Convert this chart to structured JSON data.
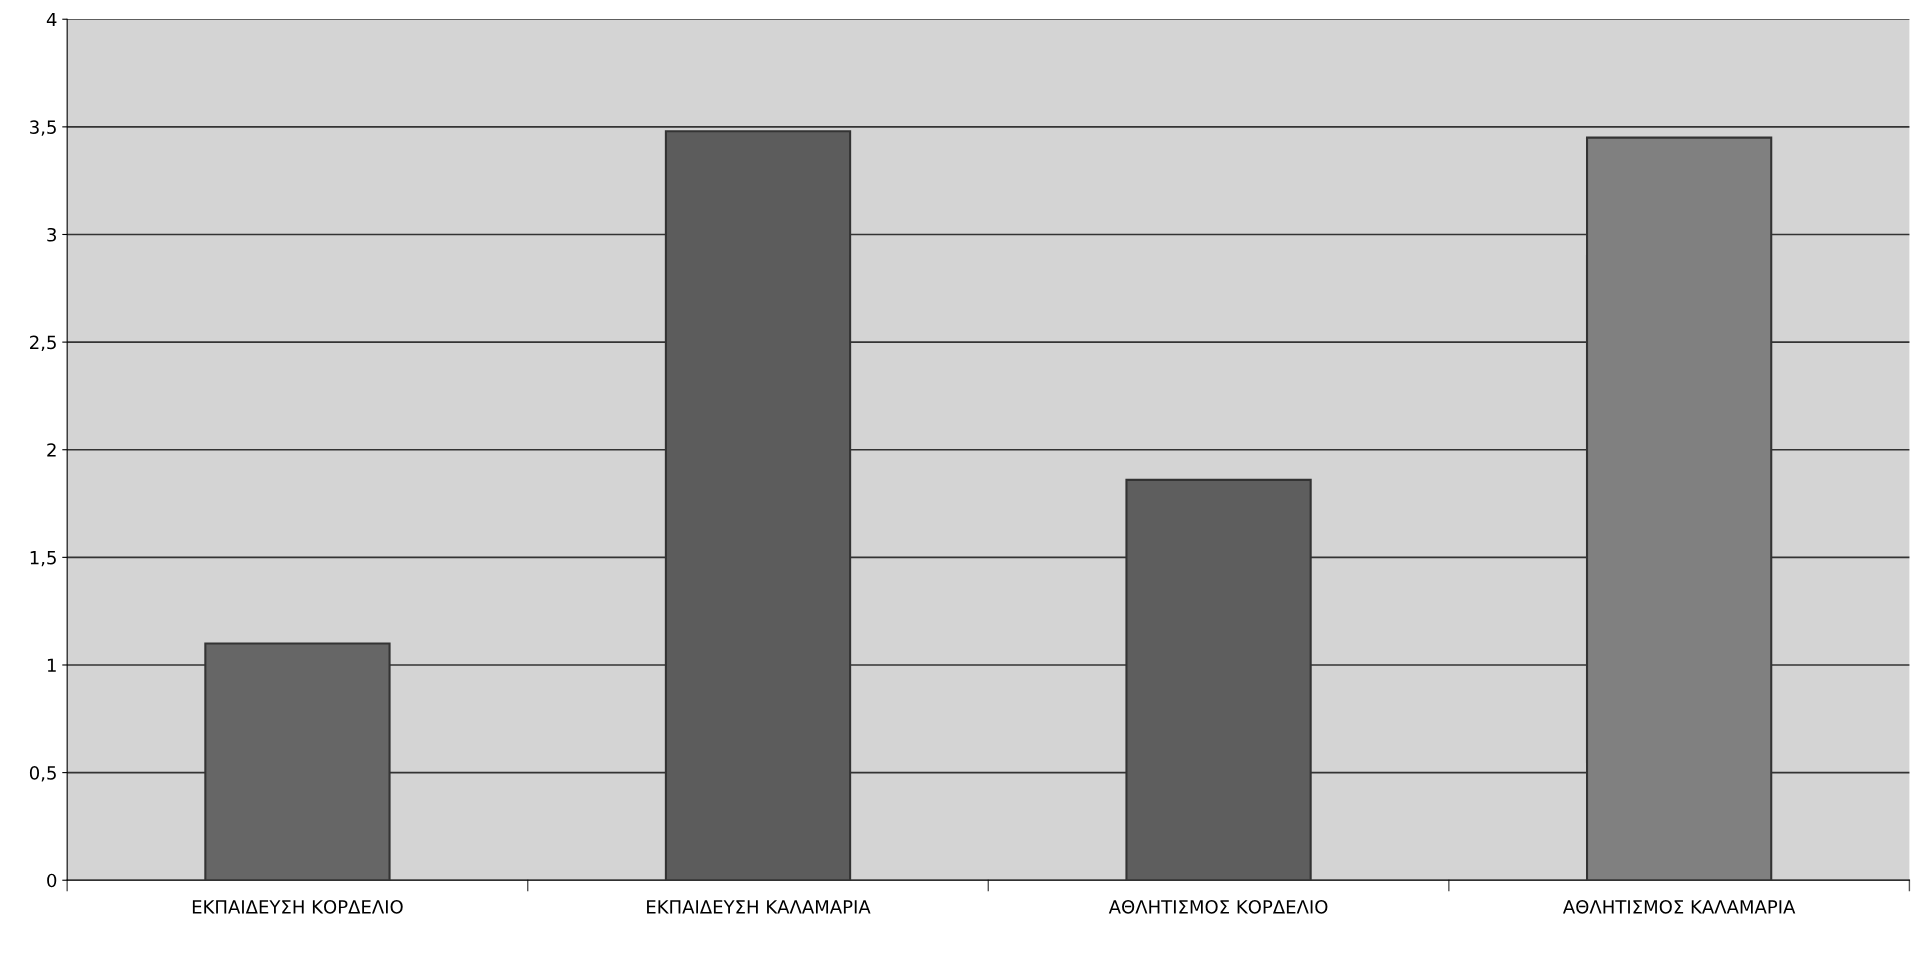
{
  "chart_data": {
    "type": "bar",
    "categories": [
      "ΕΚΠΑΙΔΕΥΣΗ ΚΟΡΔΕΛΙΟ",
      "ΕΚΠΑΙΔΕΥΣΗ ΚΑΛΑΜΑΡΙΑ",
      "ΑΘΛΗΤΙΣΜΟΣ ΚΟΡΔΕΛΙΟ",
      "ΑΘΛΗΤΙΣΜΟΣ ΚΑΛΑΜΑΡΙΑ"
    ],
    "values": [
      1.1,
      3.48,
      1.86,
      3.45
    ],
    "colors": [
      "#666666",
      "#5c5c5c",
      "#5e5e5e",
      "#808080"
    ],
    "ylim": [
      0,
      4
    ],
    "yticks": [
      0,
      {
        "value": 0.5,
        "label": "0,5"
      },
      1,
      {
        "value": 1.5,
        "label": "1,5"
      },
      2,
      {
        "value": 2.5,
        "label": "2,5"
      },
      3,
      {
        "value": 3.5,
        "label": "3,5"
      },
      4
    ],
    "grid": "y"
  }
}
